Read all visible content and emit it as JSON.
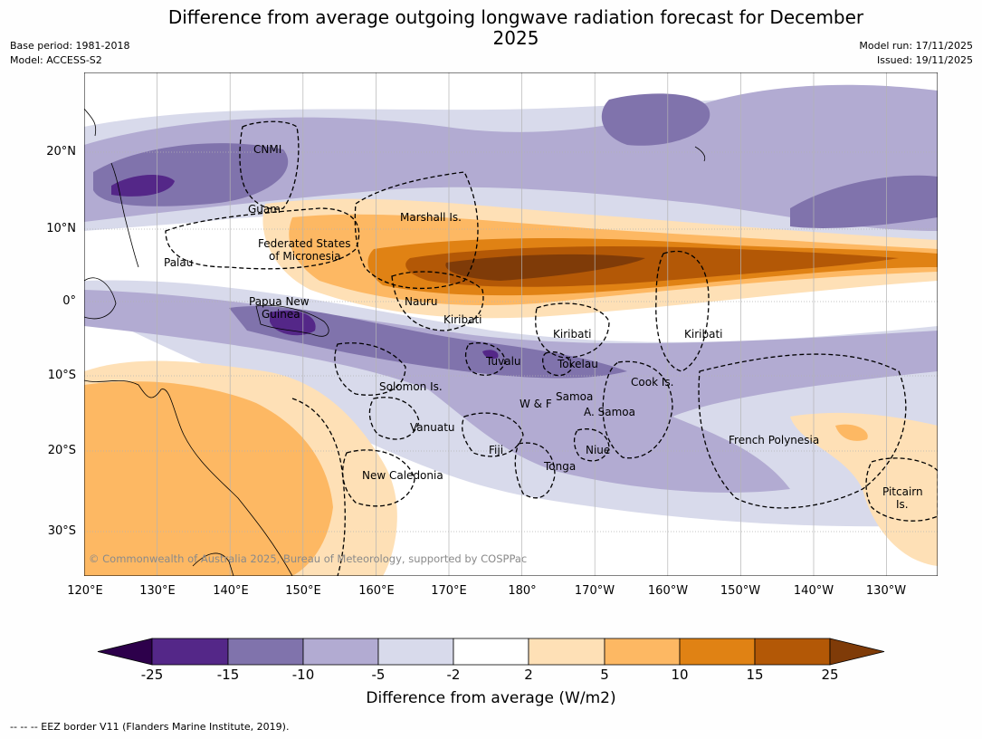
{
  "title": "Difference from average outgoing longwave radiation forecast for December 2025",
  "header": {
    "base_period": "Base period: 1981-2018",
    "model": "Model: ACCESS-S2",
    "model_run": "Model run: 17/11/2025",
    "issued": "Issued: 19/11/2025"
  },
  "map": {
    "lon_range": [
      120,
      237
    ],
    "lat_range": [
      -36,
      30
    ],
    "lon_ticks": [
      "120°E",
      "130°E",
      "140°E",
      "150°E",
      "160°E",
      "170°E",
      "180°",
      "170°W",
      "160°W",
      "150°W",
      "140°W",
      "130°W"
    ],
    "lat_ticks": [
      "20°N",
      "10°N",
      "0°",
      "10°S",
      "20°S",
      "30°S"
    ],
    "labels": {
      "cnmi": "CNMI",
      "guam": "Guam",
      "marshall": "Marshall Is.",
      "fsm_1": "Federated States",
      "fsm_2": "of Micronesia",
      "palau": "Palau",
      "png_1": "Papua New",
      "png_2": "Guinea",
      "nauru": "Nauru",
      "kiribati_w": "Kiribati",
      "kiribati_c": "Kiribati",
      "kiribati_e": "Kiribati",
      "tuvalu": "Tuvalu",
      "tokelau": "Tokelau",
      "cook": "Cook Is.",
      "solomon": "Solomon Is.",
      "wf": "W & F",
      "samoa": "Samoa",
      "asamoa": "A. Samoa",
      "vanuatu": "Vanuatu",
      "fiji": "Fiji",
      "niue": "Niue",
      "tonga": "Tonga",
      "frpoly": "French Polynesia",
      "newcal": "New Caledonia",
      "pitcairn_1": "Pitcairn",
      "pitcairn_2": "Is."
    },
    "copyright": "© Commonwealth of Australia 2025, Bureau of Meteorology, supported by COSPPac"
  },
  "colorbar": {
    "ticks": [
      "-25",
      "-15",
      "-10",
      "-5",
      "-2",
      "2",
      "5",
      "10",
      "15",
      "25"
    ],
    "colors": {
      "lt_neg25": "#2d004b",
      "neg25_15": "#542788",
      "neg15_10": "#8073ac",
      "neg10_5": "#b2abd2",
      "neg5_2": "#d8daeb",
      "neg2_2": "#ffffff",
      "p2_5": "#fee0b6",
      "p5_10": "#fdb863",
      "p10_15": "#e08214",
      "p15_25": "#b35806",
      "gt25": "#7f3b08"
    },
    "label": "Difference from average (W/m2)"
  },
  "footnote": "--  --  -- EEZ border V11 (Flanders Marine Institute, 2019)."
}
